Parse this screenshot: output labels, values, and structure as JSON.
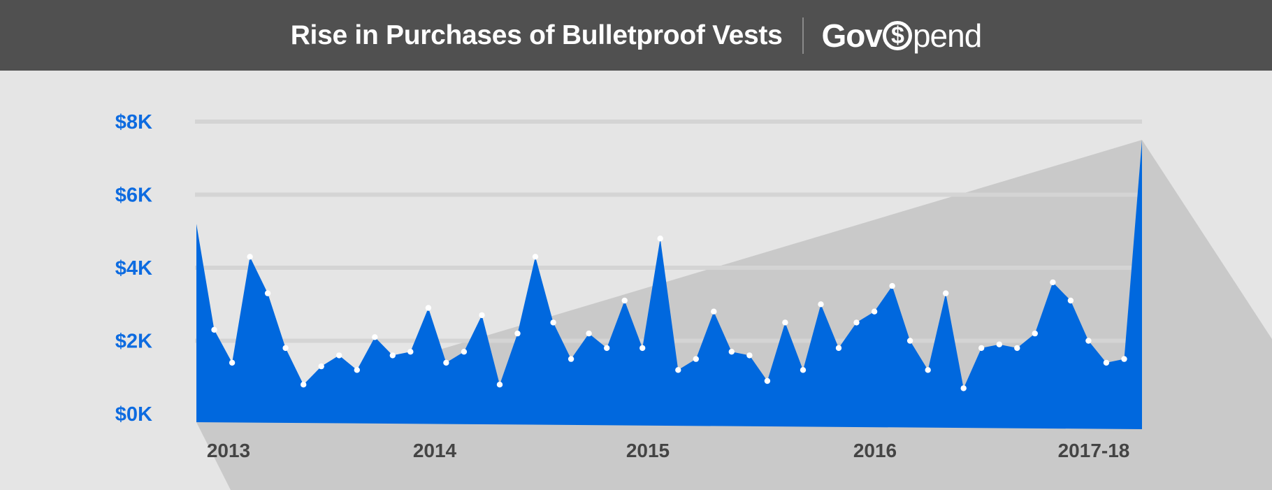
{
  "header": {
    "title": "Rise in Purchases of Bulletproof Vests",
    "brand_prefix": "Gov",
    "brand_symbol": "$",
    "brand_suffix": "pend"
  },
  "colors": {
    "header_bg": "#505050",
    "area_fill": "#0068de",
    "axis_text": "#0d6be0",
    "year_text": "#444444",
    "shadow": "#c9c9c9",
    "gridline": "#d4d4d4",
    "point": "#ffffff"
  },
  "chart_data": {
    "type": "area",
    "title": "Rise in Purchases of Bulletproof Vests",
    "xlabel": "",
    "ylabel": "",
    "ylim": [
      0,
      8000
    ],
    "y_ticks": [
      0,
      2000,
      4000,
      6000,
      8000
    ],
    "y_tick_labels": [
      "$0K",
      "$2K",
      "$4K",
      "$6K",
      "$8K"
    ],
    "x_tick_labels": [
      "2013",
      "2014",
      "2015",
      "2016",
      "2017-18"
    ],
    "grid": true,
    "legend": "none",
    "series": [
      {
        "values": [
          5200,
          2300,
          1400,
          4300,
          3300,
          1800,
          800,
          1300,
          1600,
          1200,
          2100,
          1600,
          1700,
          2900,
          1400,
          1700,
          2700,
          800,
          2200,
          4300,
          2500,
          1500,
          2200,
          1800,
          3100,
          1800,
          4800,
          1200,
          1500,
          2800,
          1700,
          1600,
          900,
          2500,
          1200,
          3000,
          1800,
          2500,
          2800,
          3500,
          2000,
          1200,
          3300,
          700,
          1800,
          1900,
          1800,
          2200,
          3600,
          3100,
          2000,
          1400,
          1500,
          7500
        ]
      }
    ]
  }
}
